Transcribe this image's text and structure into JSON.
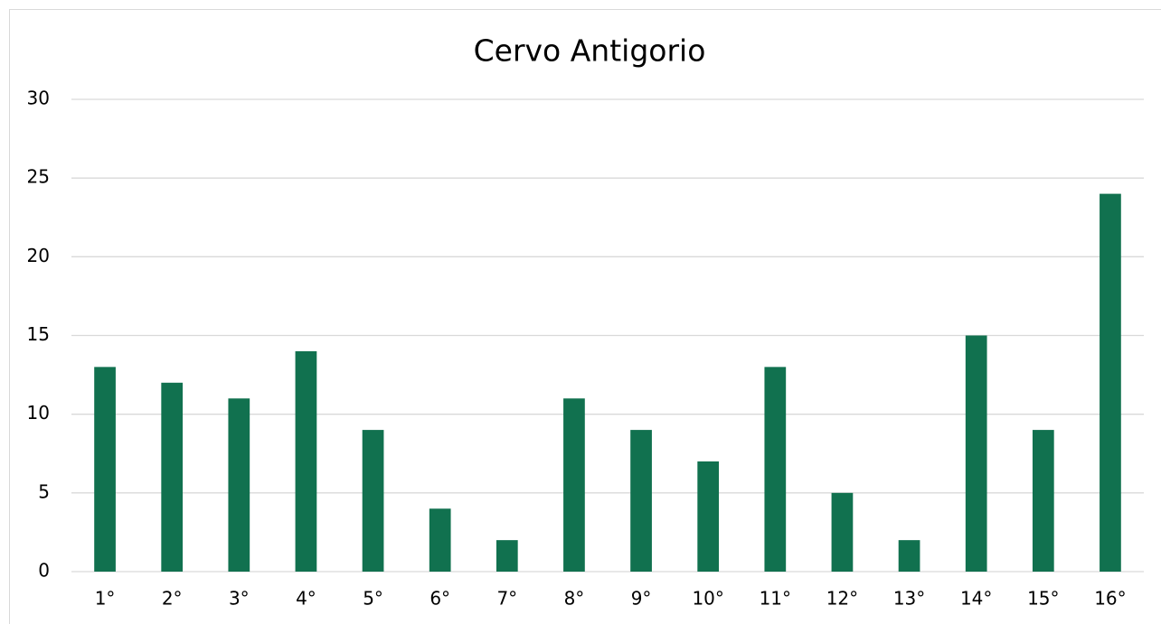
{
  "chart_data": {
    "type": "bar",
    "title": "Cervo Antigorio",
    "categories": [
      "1°",
      "2°",
      "3°",
      "4°",
      "5°",
      "6°",
      "7°",
      "8°",
      "9°",
      "10°",
      "11°",
      "12°",
      "13°",
      "14°",
      "15°",
      "16°"
    ],
    "values": [
      13,
      12,
      11,
      14,
      9,
      4,
      2,
      11,
      9,
      7,
      13,
      5,
      2,
      15,
      9,
      24
    ],
    "color": "#11714f",
    "ylim": [
      0,
      30
    ],
    "yticks": [
      0,
      5,
      10,
      15,
      20,
      25,
      30
    ],
    "grid": true
  }
}
